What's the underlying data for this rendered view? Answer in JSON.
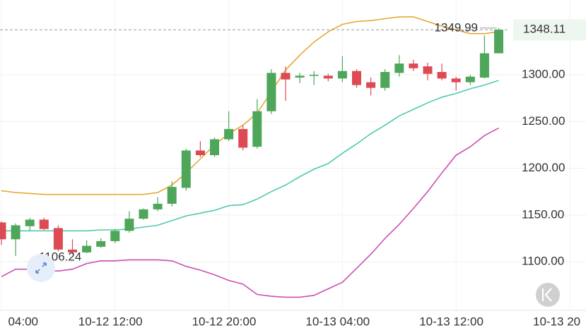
{
  "chart_data": {
    "type": "candlestick",
    "categories": [
      "04:00",
      null,
      null,
      null,
      null,
      null,
      null,
      null,
      "10-12 12:00",
      null,
      null,
      null,
      null,
      null,
      null,
      null,
      "10-12 20:00",
      null,
      null,
      null,
      null,
      null,
      null,
      null,
      "10-13 04:00",
      null,
      null,
      null,
      null,
      null,
      null,
      null,
      "10-13 12:00",
      null,
      null,
      null,
      null,
      null,
      null,
      null,
      "10-13 20"
    ],
    "open": [
      1142,
      1124,
      1138,
      1145,
      1136,
      1113,
      1110,
      1116,
      1122,
      1133,
      1146,
      1156,
      1162,
      1179,
      1219,
      1214,
      1231,
      1242,
      1223,
      1261,
      1302,
      1297,
      1299,
      1299,
      1296,
      1304,
      1292,
      1286,
      1302,
      1312,
      1309,
      1303,
      1296,
      1292,
      1297,
      1323,
      null,
      null,
      null,
      null,
      null
    ],
    "high": [
      1143,
      1141,
      1147,
      1147,
      1139,
      1124,
      1123,
      1125,
      1135,
      1154,
      1157,
      1169,
      1186,
      1221,
      1229,
      1233,
      1261,
      1246,
      1274,
      1306,
      1309,
      1302,
      1304,
      1301,
      1320,
      1306,
      1297,
      1306,
      1321,
      1316,
      1313,
      1312,
      1298,
      1300,
      1342,
      1349.99,
      null,
      null,
      null,
      null,
      null
    ],
    "low": [
      1118,
      1106.24,
      1133,
      1134,
      1111,
      1108,
      1109,
      1115,
      1120,
      1131,
      1145,
      1154,
      1159,
      1176,
      1212,
      1212,
      1229,
      1219,
      1221,
      1258,
      1272,
      1291,
      1289,
      1293,
      1292,
      1286,
      1278,
      1283,
      1298,
      1304,
      1294,
      1294,
      1283,
      1289,
      1296,
      1323,
      null,
      null,
      null,
      null,
      null
    ],
    "close": [
      1124,
      1139,
      1145,
      1135,
      1113,
      1110,
      1117,
      1122,
      1133,
      1146,
      1156,
      1162,
      1180,
      1219,
      1214,
      1231,
      1242,
      1222,
      1261,
      1302,
      1295,
      1299,
      1300,
      1296,
      1304,
      1289,
      1286,
      1303,
      1312,
      1307,
      1301,
      1296,
      1292,
      1298,
      1323,
      1348.11,
      null,
      null,
      null,
      null,
      null
    ],
    "up_color": "#4ea65a",
    "down_color": "#dc4a53",
    "lines": [
      {
        "color": "#e8a733",
        "values": [
          1176,
          1174,
          1173,
          1172,
          1172,
          1172,
          1172,
          1172,
          1172,
          1172,
          1172,
          1174,
          1182,
          1195,
          1210,
          1225,
          1237,
          1246,
          1259,
          1282,
          1305,
          1321,
          1335,
          1346,
          1354,
          1357,
          1358,
          1360,
          1362,
          1362,
          1357,
          1352,
          1348,
          1344,
          1344,
          1346,
          null,
          null,
          null,
          null,
          null
        ]
      },
      {
        "color": "#4fc9b0",
        "values": [
          1133,
          1133,
          1133,
          1133,
          1133,
          1133,
          1133,
          1134,
          1134,
          1135,
          1137,
          1139,
          1144,
          1149,
          1152,
          1155,
          1160,
          1161,
          1167,
          1175,
          1182,
          1191,
          1199,
          1205,
          1216,
          1226,
          1237,
          1246,
          1256,
          1263,
          1270,
          1276,
          1280,
          1285,
          1289,
          1294,
          null,
          null,
          null,
          null,
          null
        ]
      },
      {
        "color": "#cc4fb0",
        "values": [
          1084,
          1092,
          1092,
          1091,
          1090,
          1092,
          1098,
          1101,
          1101,
          1102,
          1102,
          1102,
          1101,
          1095,
          1091,
          1086,
          1080,
          1076,
          1065,
          1063,
          1062,
          1062,
          1064,
          1071,
          1078,
          1093,
          1108,
          1125,
          1140,
          1157,
          1175,
          1195,
          1214,
          1223,
          1235,
          1243,
          null,
          null,
          null,
          null,
          null
        ]
      }
    ],
    "ylim": [
      1048,
      1380
    ],
    "yticks": [
      {
        "value": 1100,
        "label": "1100.00"
      },
      {
        "value": 1150,
        "label": "1150.00"
      },
      {
        "value": 1200,
        "label": "1200.00"
      },
      {
        "value": 1250,
        "label": "1250.00"
      },
      {
        "value": 1300,
        "label": "1300.00"
      }
    ],
    "grid": true,
    "high_label": 1349.99,
    "low_label": 1106.24,
    "last_price": 1348.11
  }
}
